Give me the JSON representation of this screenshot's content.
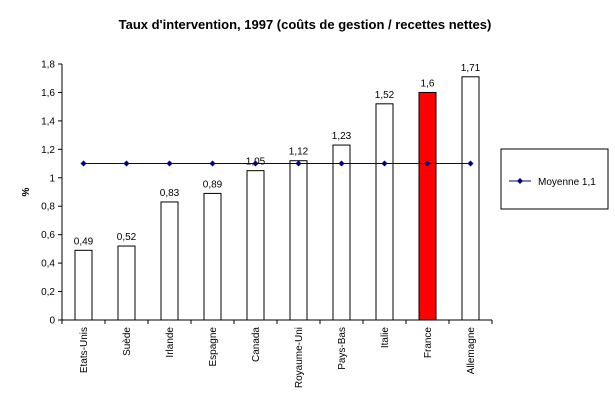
{
  "chart_data": {
    "type": "bar",
    "title": "Taux d'intervention, 1997 (coûts de gestion / recettes nettes)",
    "ylabel": "%",
    "xlabel": "",
    "ylim": [
      0,
      1.8
    ],
    "yticks": [
      "0",
      "0,2",
      "0,4",
      "0,6",
      "0,8",
      "1",
      "1,2",
      "1,4",
      "1,6",
      "1,8"
    ],
    "categories": [
      "Etats-Unis",
      "Suède",
      "Irlande",
      "Espagne",
      "Canada",
      "Royaume-Uni",
      "Pays-Bas",
      "Italie",
      "France",
      "Allemagne"
    ],
    "values": [
      0.49,
      0.52,
      0.83,
      0.89,
      1.05,
      1.12,
      1.23,
      1.52,
      1.6,
      1.71
    ],
    "value_labels": [
      "0,49",
      "0,52",
      "0,83",
      "0,89",
      "1,05",
      "1,12",
      "1,23",
      "1,52",
      "1,6",
      "1,71"
    ],
    "bar_colors": [
      "#ffffff",
      "#ffffff",
      "#ffffff",
      "#ffffff",
      "#ffffff",
      "#ffffff",
      "#ffffff",
      "#ffffff",
      "#ff0000",
      "#ffffff"
    ],
    "reference_line": {
      "name": "Moyenne 1,1",
      "value": 1.1,
      "color": "#000080"
    },
    "legend": {
      "entries": [
        "Moyenne 1,1"
      ],
      "placement": "right"
    },
    "grid": false
  }
}
